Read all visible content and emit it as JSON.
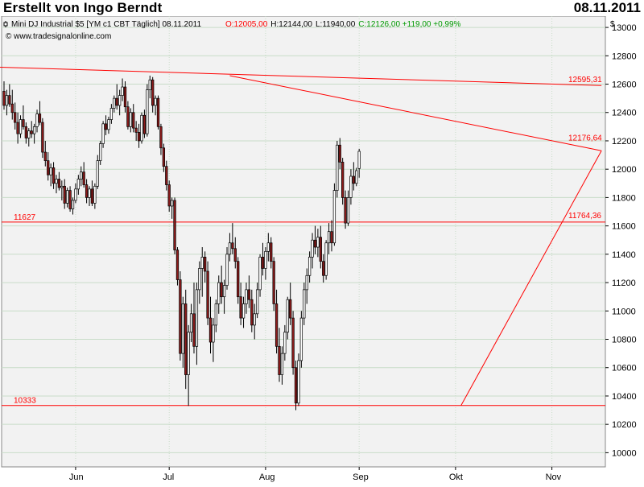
{
  "header": {
    "title": "Erstellt von Ingo Berndt",
    "date": "08.11.2011"
  },
  "chart_data": {
    "type": "candlestick",
    "instrument": "Mini DJ Industrial $5 [YM c1 CBT  Täglich] 08.11.2011",
    "ohlc_summary": {
      "open": "O:12005,00",
      "high": "H:12144,00",
      "low": "L:11940,00",
      "close": "C:12126,00 +119,00 +0,99%"
    },
    "source": "© www.tradesignalonline.com",
    "currency_label": "$",
    "ylim": [
      9900,
      13080
    ],
    "y_ticks": [
      10000,
      10200,
      10400,
      10600,
      10800,
      11000,
      11200,
      11400,
      11600,
      11800,
      12000,
      12200,
      12400,
      12600,
      12800,
      13000
    ],
    "x_tick_labels": [
      "Jun",
      "Jul",
      "Aug",
      "Sep",
      "Okt",
      "Nov"
    ],
    "x_tick_bar_index": [
      26,
      60,
      95,
      129,
      164,
      199
    ],
    "horizontal_lines": [
      {
        "label": "11627",
        "value": 11627
      },
      {
        "label": "10333",
        "value": 10333
      }
    ],
    "trendlines": [
      {
        "label": "12595,31",
        "from": {
          "bar": -2,
          "value": 12720
        },
        "to": {
          "bar": 217,
          "value": 12590
        }
      },
      {
        "label": "12176,64",
        "from": {
          "bar": 82,
          "value": 12660
        },
        "to": {
          "bar": 217,
          "value": 12130
        }
      },
      {
        "label": "11764,36",
        "from": {
          "bar": 166,
          "value": 10333
        },
        "to": {
          "bar": 217,
          "value": 12130
        }
      }
    ],
    "colors": {
      "up": "#ffffff",
      "down": "#8b1a1a",
      "outline": "#000000",
      "line": "#ff0000",
      "grid": "#c8dcc8",
      "plot_bg": "#f2f2f2",
      "up_change": "#009900",
      "open_text": "#ff0000"
    },
    "candles": [
      [
        12550,
        12620,
        12420,
        12450
      ],
      [
        12450,
        12560,
        12380,
        12520
      ],
      [
        12520,
        12600,
        12440,
        12460
      ],
      [
        12460,
        12560,
        12350,
        12400
      ],
      [
        12400,
        12470,
        12280,
        12330
      ],
      [
        12330,
        12400,
        12180,
        12250
      ],
      [
        12250,
        12380,
        12220,
        12350
      ],
      [
        12350,
        12450,
        12280,
        12300
      ],
      [
        12300,
        12330,
        12180,
        12220
      ],
      [
        12220,
        12290,
        12160,
        12270
      ],
      [
        12270,
        12340,
        12220,
        12250
      ],
      [
        12250,
        12320,
        12180,
        12300
      ],
      [
        12300,
        12420,
        12260,
        12390
      ],
      [
        12390,
        12480,
        12310,
        12330
      ],
      [
        12330,
        12360,
        12080,
        12120
      ],
      [
        12120,
        12200,
        12020,
        12060
      ],
      [
        12060,
        12120,
        11920,
        11960
      ],
      [
        11960,
        12040,
        11880,
        12010
      ],
      [
        12010,
        12050,
        11860,
        11900
      ],
      [
        11900,
        11960,
        11830,
        11930
      ],
      [
        11930,
        11980,
        11850,
        11870
      ],
      [
        11870,
        11920,
        11780,
        11880
      ],
      [
        11880,
        11930,
        11720,
        11760
      ],
      [
        11760,
        11870,
        11730,
        11850
      ],
      [
        11850,
        11880,
        11700,
        11720
      ],
      [
        11720,
        11800,
        11680,
        11780
      ],
      [
        11780,
        11900,
        11760,
        11860
      ],
      [
        11860,
        11960,
        11820,
        11930
      ],
      [
        11930,
        12020,
        11880,
        11980
      ],
      [
        11980,
        12050,
        11870,
        11890
      ],
      [
        11890,
        11930,
        11760,
        11800
      ],
      [
        11800,
        11880,
        11740,
        11860
      ],
      [
        11860,
        11920,
        11740,
        11760
      ],
      [
        11760,
        11900,
        11720,
        11880
      ],
      [
        11880,
        12100,
        11860,
        12060
      ],
      [
        12060,
        12200,
        12030,
        12180
      ],
      [
        12180,
        12340,
        12150,
        12320
      ],
      [
        12320,
        12380,
        12240,
        12280
      ],
      [
        12280,
        12370,
        12250,
        12350
      ],
      [
        12350,
        12460,
        12320,
        12430
      ],
      [
        12430,
        12520,
        12400,
        12500
      ],
      [
        12500,
        12600,
        12420,
        12450
      ],
      [
        12450,
        12560,
        12380,
        12520
      ],
      [
        12520,
        12640,
        12480,
        12580
      ],
      [
        12580,
        12620,
        12400,
        12440
      ],
      [
        12440,
        12480,
        12280,
        12300
      ],
      [
        12300,
        12430,
        12260,
        12400
      ],
      [
        12400,
        12460,
        12260,
        12290
      ],
      [
        12290,
        12340,
        12200,
        12260
      ],
      [
        12260,
        12320,
        12150,
        12200
      ],
      [
        12200,
        12400,
        12180,
        12380
      ],
      [
        12380,
        12420,
        12220,
        12250
      ],
      [
        12250,
        12600,
        12230,
        12560
      ],
      [
        12560,
        12660,
        12500,
        12630
      ],
      [
        12630,
        12650,
        12400,
        12450
      ],
      [
        12450,
        12520,
        12380,
        12500
      ],
      [
        12500,
        12520,
        12280,
        12300
      ],
      [
        12300,
        12320,
        12100,
        12150
      ],
      [
        12150,
        12180,
        11980,
        12020
      ],
      [
        12020,
        12060,
        11850,
        11890
      ],
      [
        11890,
        11920,
        11700,
        11740
      ],
      [
        11740,
        11800,
        11650,
        11780
      ],
      [
        11780,
        11800,
        11400,
        11430
      ],
      [
        11430,
        11450,
        11180,
        11220
      ],
      [
        11220,
        11280,
        10650,
        10700
      ],
      [
        10700,
        11100,
        10600,
        11050
      ],
      [
        11050,
        11150,
        10450,
        10550
      ],
      [
        10550,
        10900,
        10330,
        10850
      ],
      [
        10850,
        11050,
        10780,
        10980
      ],
      [
        10980,
        11200,
        10700,
        10750
      ],
      [
        10750,
        11200,
        10620,
        11150
      ],
      [
        11150,
        11350,
        11050,
        11300
      ],
      [
        11300,
        11450,
        11100,
        11380
      ],
      [
        11380,
        11420,
        11200,
        11280
      ],
      [
        11280,
        11350,
        10900,
        10950
      ],
      [
        10950,
        11100,
        10700,
        10780
      ],
      [
        10780,
        10950,
        10640,
        10900
      ],
      [
        10900,
        11080,
        10850,
        11050
      ],
      [
        11050,
        11250,
        10980,
        11200
      ],
      [
        11200,
        11320,
        11050,
        11100
      ],
      [
        11100,
        11220,
        10980,
        11180
      ],
      [
        11180,
        11450,
        11150,
        11400
      ],
      [
        11400,
        11550,
        11350,
        11480
      ],
      [
        11480,
        11620,
        11400,
        11440
      ],
      [
        11440,
        11520,
        11300,
        11350
      ],
      [
        11350,
        11380,
        11050,
        11100
      ],
      [
        11100,
        11200,
        10900,
        10950
      ],
      [
        10950,
        11100,
        10880,
        11050
      ],
      [
        11050,
        11200,
        10980,
        11150
      ],
      [
        11150,
        11250,
        11020,
        11080
      ],
      [
        11080,
        11150,
        10850,
        10900
      ],
      [
        10900,
        11050,
        10800,
        10980
      ],
      [
        10980,
        11200,
        10950,
        11150
      ],
      [
        11150,
        11400,
        11100,
        11380
      ],
      [
        11380,
        11480,
        11250,
        11300
      ],
      [
        11300,
        11450,
        11220,
        11420
      ],
      [
        11420,
        11550,
        11350,
        11480
      ],
      [
        11480,
        11520,
        11300,
        11350
      ],
      [
        11350,
        11380,
        11000,
        11050
      ],
      [
        11050,
        11150,
        10700,
        10750
      ],
      [
        10750,
        10880,
        10500,
        10550
      ],
      [
        10550,
        10750,
        10480,
        10700
      ],
      [
        10700,
        10900,
        10650,
        10850
      ],
      [
        10850,
        11100,
        10800,
        11080
      ],
      [
        11080,
        11200,
        10900,
        10950
      ],
      [
        10950,
        11000,
        10550,
        10600
      ],
      [
        10600,
        10650,
        10300,
        10350
      ],
      [
        10350,
        10700,
        10330,
        10650
      ],
      [
        10650,
        11000,
        10600,
        10950
      ],
      [
        10950,
        11200,
        10900,
        11150
      ],
      [
        11150,
        11300,
        11050,
        11250
      ],
      [
        11250,
        11420,
        11200,
        11380
      ],
      [
        11380,
        11550,
        11300,
        11500
      ],
      [
        11500,
        11600,
        11400,
        11450
      ],
      [
        11450,
        11580,
        11380,
        11520
      ],
      [
        11520,
        11600,
        11300,
        11350
      ],
      [
        11350,
        11400,
        11200,
        11250
      ],
      [
        11250,
        11500,
        11220,
        11480
      ],
      [
        11480,
        11620,
        11400,
        11560
      ],
      [
        11560,
        11640,
        11420,
        11480
      ],
      [
        11480,
        11900,
        11460,
        11850
      ],
      [
        11850,
        12200,
        11800,
        12170
      ],
      [
        12170,
        12220,
        12000,
        12050
      ],
      [
        12050,
        12080,
        11750,
        11800
      ],
      [
        11800,
        11850,
        11580,
        11620
      ],
      [
        11620,
        11850,
        11600,
        11800
      ],
      [
        11800,
        12000,
        11750,
        11950
      ],
      [
        11950,
        12050,
        11850,
        11900
      ],
      [
        11900,
        12010,
        11880,
        11990
      ],
      [
        12005,
        12144,
        11940,
        12126
      ]
    ]
  }
}
